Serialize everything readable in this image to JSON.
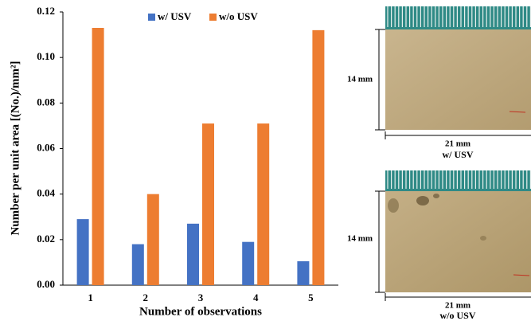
{
  "chart_data": {
    "type": "bar",
    "y_label": "Number per unit area [(No.)/mm²]",
    "x_label": "Number of observations",
    "categories": [
      "1",
      "2",
      "3",
      "4",
      "5"
    ],
    "series": [
      {
        "name": "w/ USV",
        "color": "#4472c4",
        "values": [
          0.029,
          0.018,
          0.027,
          0.019,
          0.0105
        ]
      },
      {
        "name": "w/o USV",
        "color": "#ed7d31",
        "values": [
          0.113,
          0.04,
          0.071,
          0.071,
          0.112
        ]
      }
    ],
    "ylim": [
      0,
      0.12
    ],
    "yticks": [
      {
        "value": 0,
        "label": "0.00"
      },
      0.02,
      0.04,
      0.06,
      0.08,
      {
        "value": 0.1,
        "label": "0.10"
      },
      0.12
    ],
    "grid": false,
    "legend": "top"
  },
  "images": [
    {
      "height_label": "14 mm",
      "width_label": "21 mm",
      "caption": "w/ USV"
    },
    {
      "height_label": "14 mm",
      "width_label": "21 mm",
      "caption": "w/o USV"
    }
  ]
}
